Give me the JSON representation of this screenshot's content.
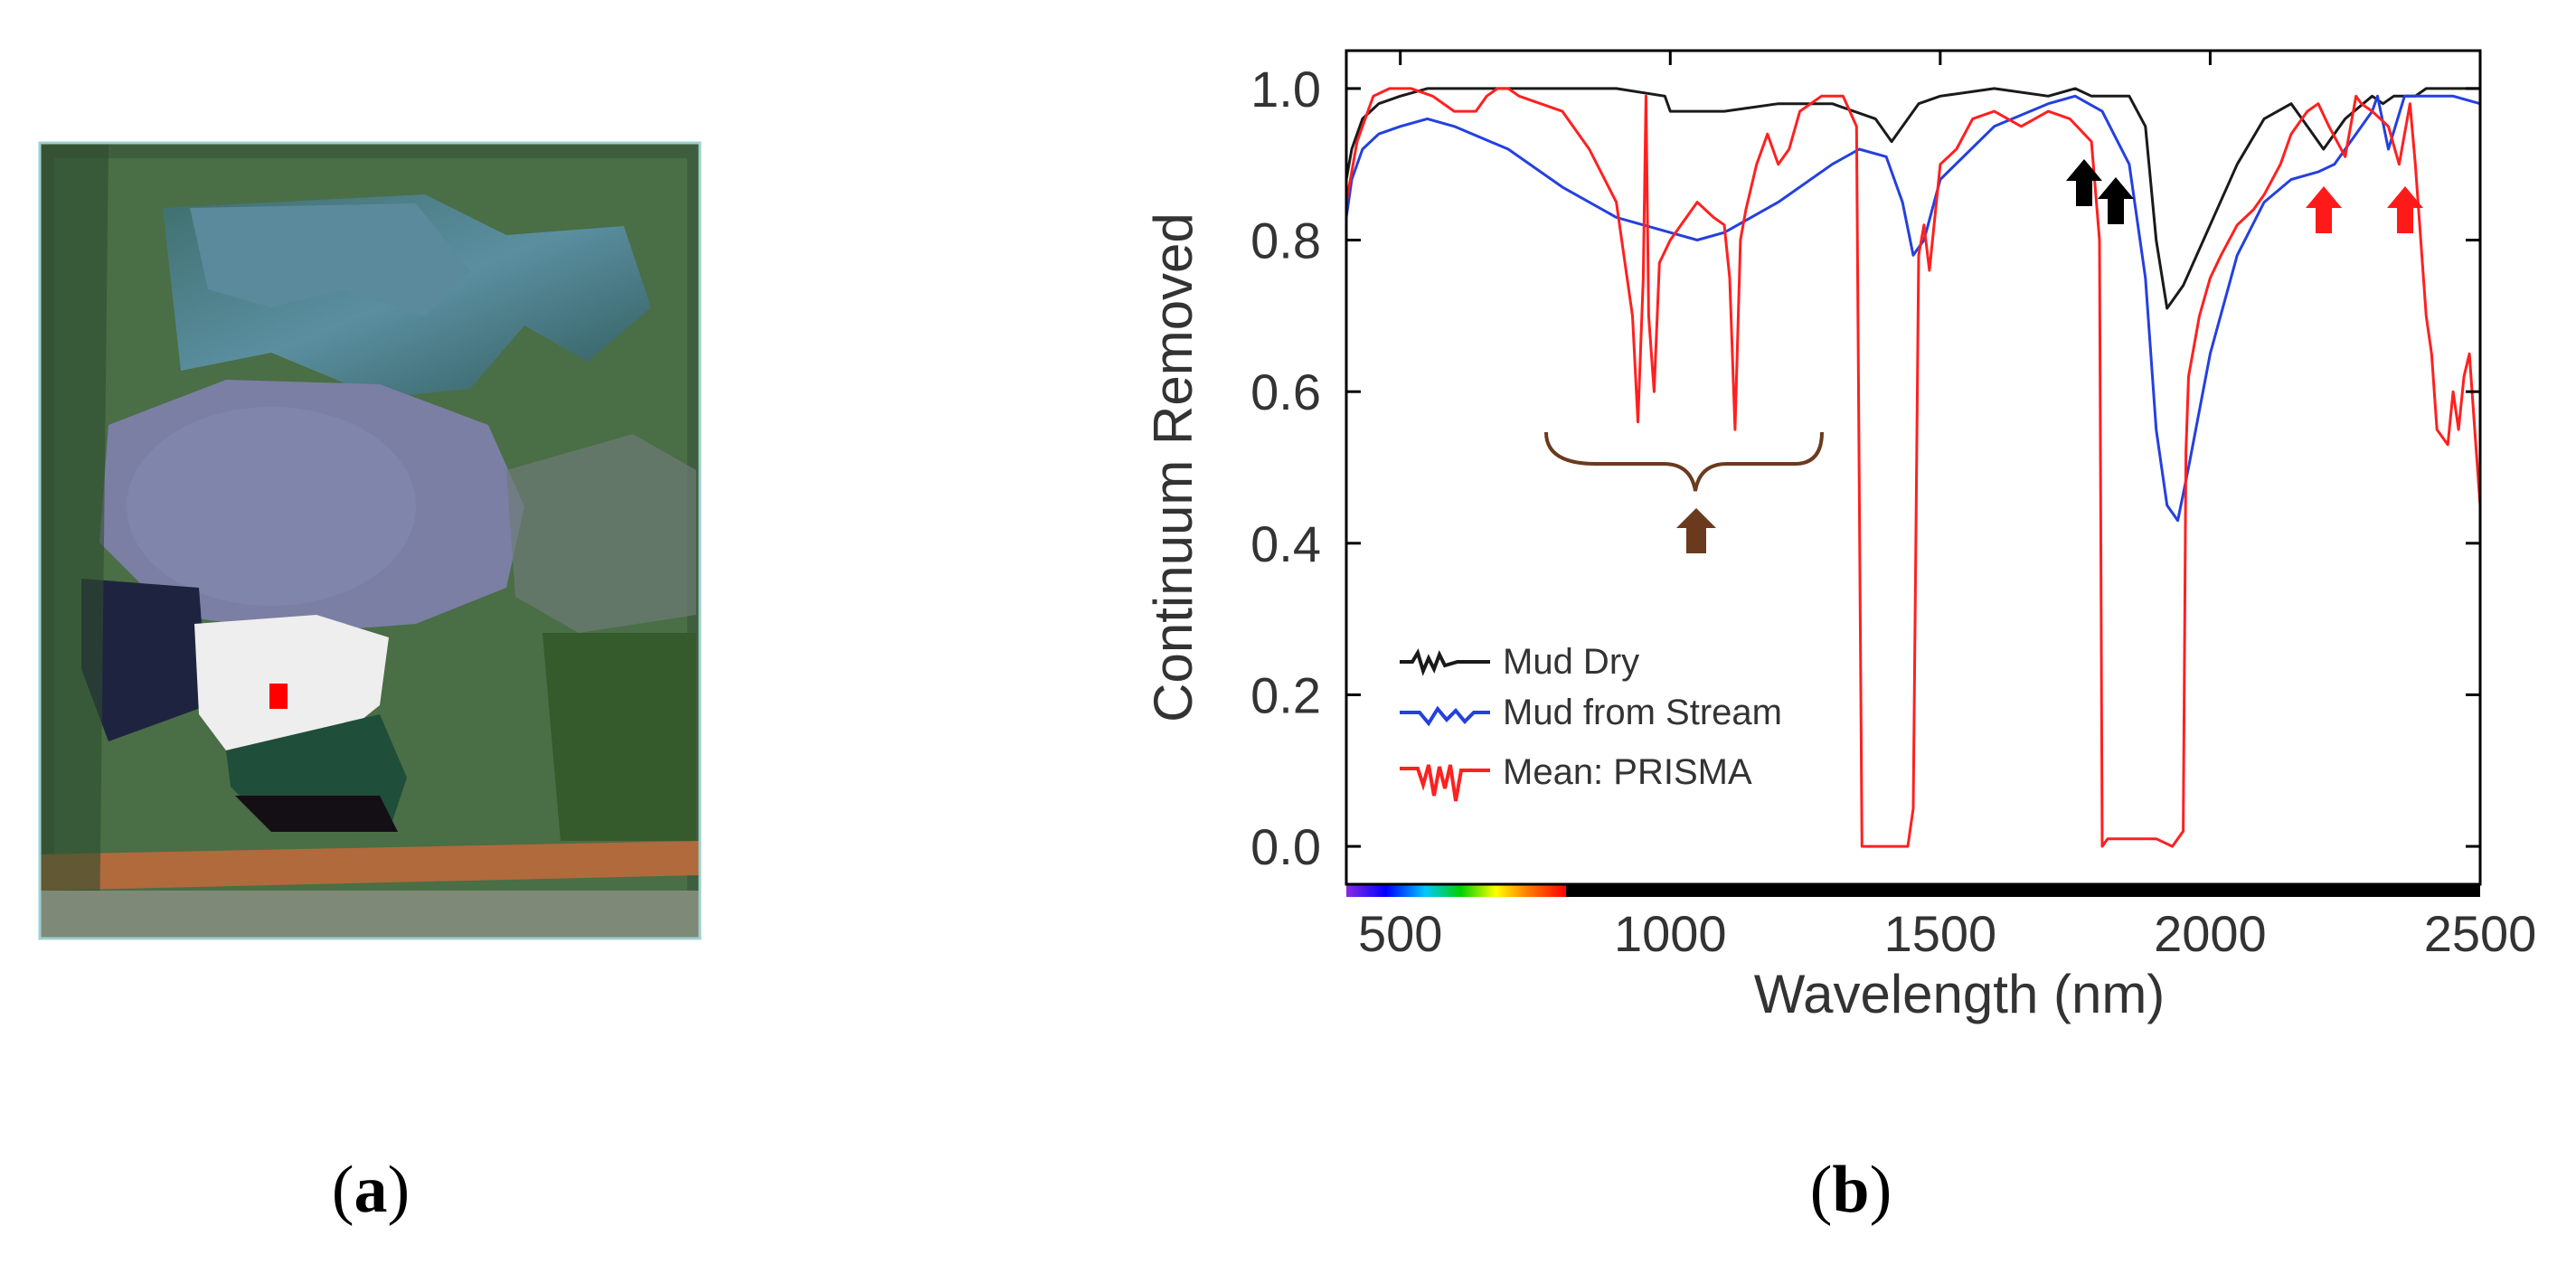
{
  "panels": {
    "left_label": "a",
    "right_label": "b"
  },
  "legend": [
    {
      "label": "Mud Dry",
      "color": "#1a1a1a"
    },
    {
      "label": "Mud from Stream",
      "color": "#2440e0"
    },
    {
      "label": "Mean: PRISMA",
      "color": "#ff2020"
    }
  ],
  "chart_data": {
    "type": "line",
    "xlabel": "Wavelength (nm)",
    "ylabel": "Continuum Removed",
    "xlim": [
      400,
      2500
    ],
    "ylim": [
      -0.05,
      1.05
    ],
    "xticks": [
      500,
      1000,
      1500,
      2000,
      2500
    ],
    "yticks": [
      0.0,
      0.2,
      0.4,
      0.6,
      0.8,
      1.0
    ],
    "xtick_labels": [
      "500",
      "1000",
      "1500",
      "2000",
      "2500"
    ],
    "ytick_labels": [
      "0.0",
      "0.2",
      "0.4",
      "0.6",
      "0.8",
      "1.0"
    ],
    "grid": false,
    "legend_position": "lower-left",
    "series": [
      {
        "name": "Mud Dry",
        "color": "#1a1a1a",
        "x": [
          400,
          410,
          430,
          460,
          500,
          550,
          600,
          700,
          800,
          900,
          990,
          1000,
          1100,
          1200,
          1300,
          1380,
          1410,
          1430,
          1460,
          1500,
          1600,
          1700,
          1750,
          1780,
          1800,
          1850,
          1880,
          1900,
          1920,
          1950,
          2000,
          2050,
          2100,
          2150,
          2180,
          2210,
          2250,
          2300,
          2320,
          2340,
          2380,
          2400,
          2450,
          2500
        ],
        "y": [
          0.88,
          0.92,
          0.96,
          0.98,
          0.99,
          1.0,
          1.0,
          1.0,
          1.0,
          1.0,
          0.99,
          0.97,
          0.97,
          0.98,
          0.98,
          0.96,
          0.93,
          0.95,
          0.98,
          0.99,
          1.0,
          0.99,
          1.0,
          0.99,
          0.99,
          0.99,
          0.95,
          0.8,
          0.71,
          0.74,
          0.82,
          0.9,
          0.96,
          0.98,
          0.95,
          0.92,
          0.96,
          0.99,
          0.98,
          0.99,
          0.99,
          1.0,
          1.0,
          1.0
        ]
      },
      {
        "name": "Mud from Stream",
        "color": "#2440e0",
        "x": [
          400,
          410,
          430,
          460,
          500,
          550,
          600,
          700,
          800,
          900,
          1000,
          1050,
          1100,
          1200,
          1300,
          1350,
          1400,
          1430,
          1450,
          1470,
          1500,
          1600,
          1700,
          1750,
          1800,
          1850,
          1880,
          1900,
          1920,
          1940,
          1960,
          2000,
          2050,
          2100,
          2150,
          2200,
          2230,
          2260,
          2300,
          2310,
          2330,
          2360,
          2400,
          2450,
          2500
        ],
        "y": [
          0.83,
          0.88,
          0.92,
          0.94,
          0.95,
          0.96,
          0.95,
          0.92,
          0.87,
          0.83,
          0.81,
          0.8,
          0.81,
          0.85,
          0.9,
          0.92,
          0.91,
          0.85,
          0.78,
          0.8,
          0.88,
          0.95,
          0.98,
          0.99,
          0.97,
          0.9,
          0.75,
          0.55,
          0.45,
          0.43,
          0.5,
          0.65,
          0.78,
          0.85,
          0.88,
          0.89,
          0.9,
          0.93,
          0.97,
          0.99,
          0.92,
          0.99,
          0.99,
          0.99,
          0.98
        ]
      },
      {
        "name": "Mean: PRISMA",
        "color": "#ff2020",
        "x": [
          400,
          420,
          450,
          480,
          520,
          560,
          600,
          640,
          660,
          680,
          700,
          720,
          760,
          800,
          850,
          900,
          930,
          940,
          950,
          955,
          960,
          970,
          980,
          1000,
          1020,
          1050,
          1080,
          1100,
          1110,
          1120,
          1130,
          1140,
          1160,
          1180,
          1200,
          1220,
          1240,
          1280,
          1320,
          1345,
          1355,
          1370,
          1400,
          1440,
          1450,
          1460,
          1470,
          1480,
          1500,
          1530,
          1560,
          1600,
          1650,
          1700,
          1740,
          1780,
          1795,
          1800,
          1810,
          1850,
          1900,
          1930,
          1950,
          1955,
          1960,
          1980,
          2000,
          2020,
          2050,
          2080,
          2100,
          2130,
          2150,
          2170,
          2180,
          2200,
          2220,
          2250,
          2270,
          2280,
          2300,
          2330,
          2350,
          2370,
          2380,
          2390,
          2400,
          2410,
          2420,
          2440,
          2450,
          2460,
          2470,
          2480,
          2490,
          2500
        ],
        "y": [
          0.85,
          0.93,
          0.99,
          1.0,
          1.0,
          0.99,
          0.97,
          0.97,
          0.99,
          1.0,
          1.0,
          0.99,
          0.98,
          0.97,
          0.92,
          0.85,
          0.7,
          0.56,
          0.75,
          0.99,
          0.7,
          0.6,
          0.77,
          0.8,
          0.82,
          0.85,
          0.83,
          0.82,
          0.75,
          0.55,
          0.8,
          0.84,
          0.9,
          0.94,
          0.9,
          0.92,
          0.97,
          0.99,
          0.99,
          0.95,
          0.0,
          0.0,
          0.0,
          0.0,
          0.05,
          0.78,
          0.82,
          0.76,
          0.9,
          0.92,
          0.96,
          0.97,
          0.95,
          0.97,
          0.96,
          0.93,
          0.8,
          0.0,
          0.01,
          0.01,
          0.01,
          0.0,
          0.02,
          0.52,
          0.62,
          0.7,
          0.75,
          0.78,
          0.82,
          0.84,
          0.86,
          0.9,
          0.94,
          0.96,
          0.97,
          0.98,
          0.95,
          0.91,
          0.99,
          0.98,
          0.97,
          0.95,
          0.9,
          0.98,
          0.9,
          0.8,
          0.7,
          0.65,
          0.55,
          0.53,
          0.6,
          0.55,
          0.62,
          0.65,
          0.55,
          0.45
        ]
      }
    ]
  }
}
